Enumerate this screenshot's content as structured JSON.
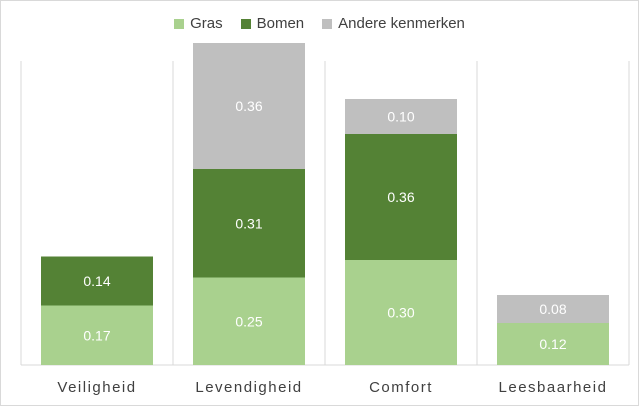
{
  "chart_data": {
    "type": "bar",
    "stacked": true,
    "categories": [
      "Veiligheid",
      "Levendigheid",
      "Comfort",
      "Leesbaarheid"
    ],
    "series": [
      {
        "name": "Gras",
        "color": "#a9d18e",
        "values": [
          0.17,
          0.25,
          0.3,
          0.12
        ]
      },
      {
        "name": "Bomen",
        "color": "#548235",
        "values": [
          0.14,
          0.31,
          0.36,
          null
        ]
      },
      {
        "name": "Andere kenmerken",
        "color": "#bfbfbf",
        "values": [
          null,
          0.36,
          0.1,
          0.08
        ]
      }
    ],
    "data_labels": [
      [
        "0.17",
        "0.25",
        "0.30",
        "0.12"
      ],
      [
        "0.14",
        "0.31",
        "0.36",
        ""
      ],
      [
        "",
        "0.36",
        "0.10",
        "0.08"
      ]
    ],
    "ylim": [
      0,
      0.92
    ],
    "grid": false,
    "legend_position": "top",
    "category_separators": true
  }
}
